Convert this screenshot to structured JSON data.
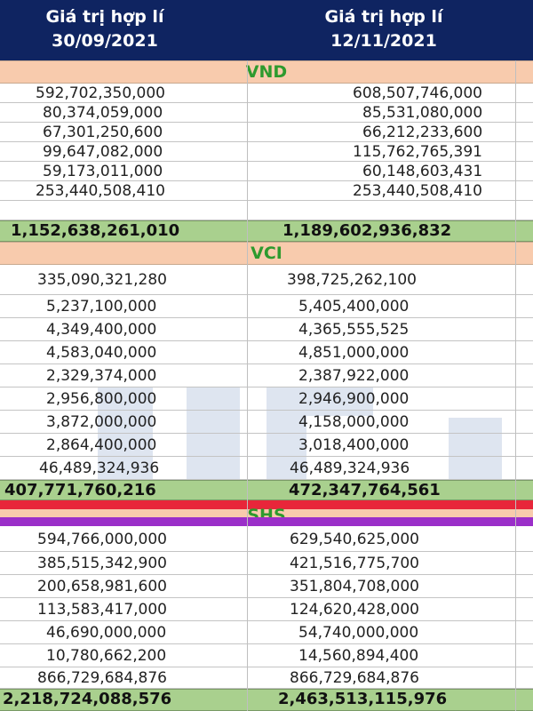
{
  "header": {
    "col1_line1": "Giá trị hợp lí",
    "col1_line2": "30/09/2021",
    "col2_line1": "Giá trị hợp lí",
    "col2_line2": "12/11/2021"
  },
  "groups": [
    {
      "label": "VND",
      "rows": [
        [
          "592,702,350,000",
          "608,507,746,000"
        ],
        [
          "80,374,059,000",
          "85,531,080,000"
        ],
        [
          "67,301,250,600",
          "66,212,233,600"
        ],
        [
          "99,647,082,000",
          "115,762,765,391"
        ],
        [
          "59,173,011,000",
          "60,148,603,431"
        ],
        [
          "253,440,508,410",
          "253,440,508,410"
        ]
      ],
      "total": [
        "1,152,638,261,010",
        "1,189,602,936,832"
      ]
    },
    {
      "label": "VCI",
      "rows": [
        [
          "335,090,321,280",
          "398,725,262,100"
        ],
        [
          "5,237,100,000",
          "5,405,400,000"
        ],
        [
          "4,349,400,000",
          "4,365,555,525"
        ],
        [
          "4,583,040,000",
          "4,851,000,000"
        ],
        [
          "2,329,374,000",
          "2,387,922,000"
        ],
        [
          "2,956,800,000",
          "2,946,900,000"
        ],
        [
          "3,872,000,000",
          "4,158,000,000"
        ],
        [
          "2,864,400,000",
          "3,018,400,000"
        ],
        [
          "46,489,324,936",
          "46,489,324,936"
        ]
      ],
      "total": [
        "407,771,760,216",
        "472,347,764,561"
      ]
    },
    {
      "label": "SHS",
      "rows": [
        [
          "594,766,000,000",
          "629,540,625,000"
        ],
        [
          "385,515,342,900",
          "421,516,775,700"
        ],
        [
          "200,658,981,600",
          "351,804,708,000"
        ],
        [
          "113,583,417,000",
          "124,620,428,000"
        ],
        [
          "46,690,000,000",
          "54,740,000,000"
        ],
        [
          "10,780,662,200",
          "14,560,894,400"
        ],
        [
          "866,729,684,876",
          "866,729,684,876"
        ]
      ],
      "total": [
        "2,218,724,088,576",
        "2,463,513,115,976"
      ]
    }
  ]
}
